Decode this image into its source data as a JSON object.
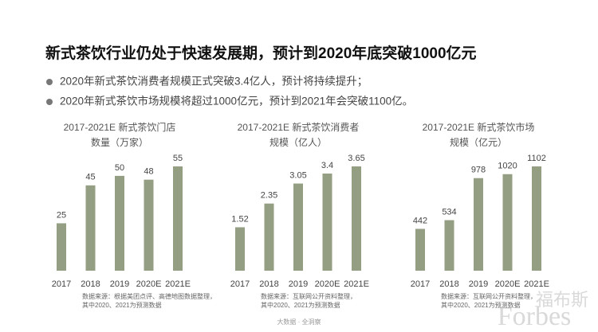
{
  "title": "新式茶饮行业仍处于快速发展期，预计到2020年底突破1000亿元",
  "bullets": [
    "2020年新式茶饮消费者规模正式突破3.4亿人，预计将持续提升；",
    "2020年新式茶饮市场规模将超过1000亿元，预计到2021年会突破1100亿。"
  ],
  "chart_data": [
    {
      "type": "bar",
      "title": [
        "2017-2021E 新式茶饮门店",
        "数量（万家）"
      ],
      "categories": [
        "2017",
        "2018",
        "2019",
        "2020E",
        "2021E"
      ],
      "values": [
        25,
        45,
        50,
        48,
        55
      ],
      "color": "#939e82",
      "source": [
        "数据来源：根据美团点评、高德地图数据整理，",
        "其中2020、2021为预测数据"
      ]
    },
    {
      "type": "bar",
      "title": [
        "2017-2021E 新式茶饮消费者",
        "规模（亿人）"
      ],
      "categories": [
        "2017",
        "2018",
        "2019",
        "2020E",
        "2021E"
      ],
      "values": [
        1.52,
        2.35,
        3.05,
        3.4,
        3.65
      ],
      "color": "#939e82",
      "source": [
        "数据来源：互联网公开资料整理，",
        "其中2020、2021为预测数据"
      ]
    },
    {
      "type": "bar",
      "title": [
        "2017-2021E 新式茶饮市场",
        "规模（亿元）"
      ],
      "categories": [
        "2017",
        "2018",
        "2019",
        "2020E",
        "2021E"
      ],
      "values": [
        442,
        534,
        978,
        1020,
        1102
      ],
      "color": "#939e82",
      "source": [
        "数据来源：互联网公开资料整理，",
        "其中2020、2021为预测数据"
      ]
    }
  ],
  "footer": "大数据 · 全洞察",
  "watermark": [
    "福布斯",
    "Forbes"
  ]
}
